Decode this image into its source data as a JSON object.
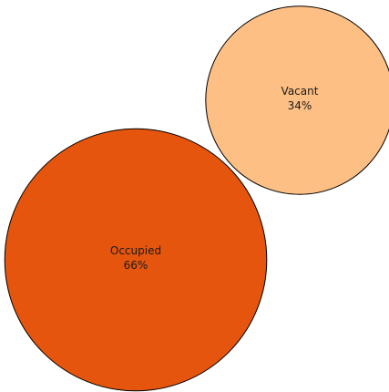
{
  "chart_data": {
    "type": "bubble",
    "title": "",
    "series": [
      {
        "name": "Vacant",
        "value": 34,
        "value_label": "34%",
        "color": "#fdbf84"
      },
      {
        "name": "Occupied",
        "value": 66,
        "value_label": "66%",
        "color": "#e6550d"
      }
    ],
    "stroke_color": "#000000",
    "legend": "none",
    "grid": false
  }
}
